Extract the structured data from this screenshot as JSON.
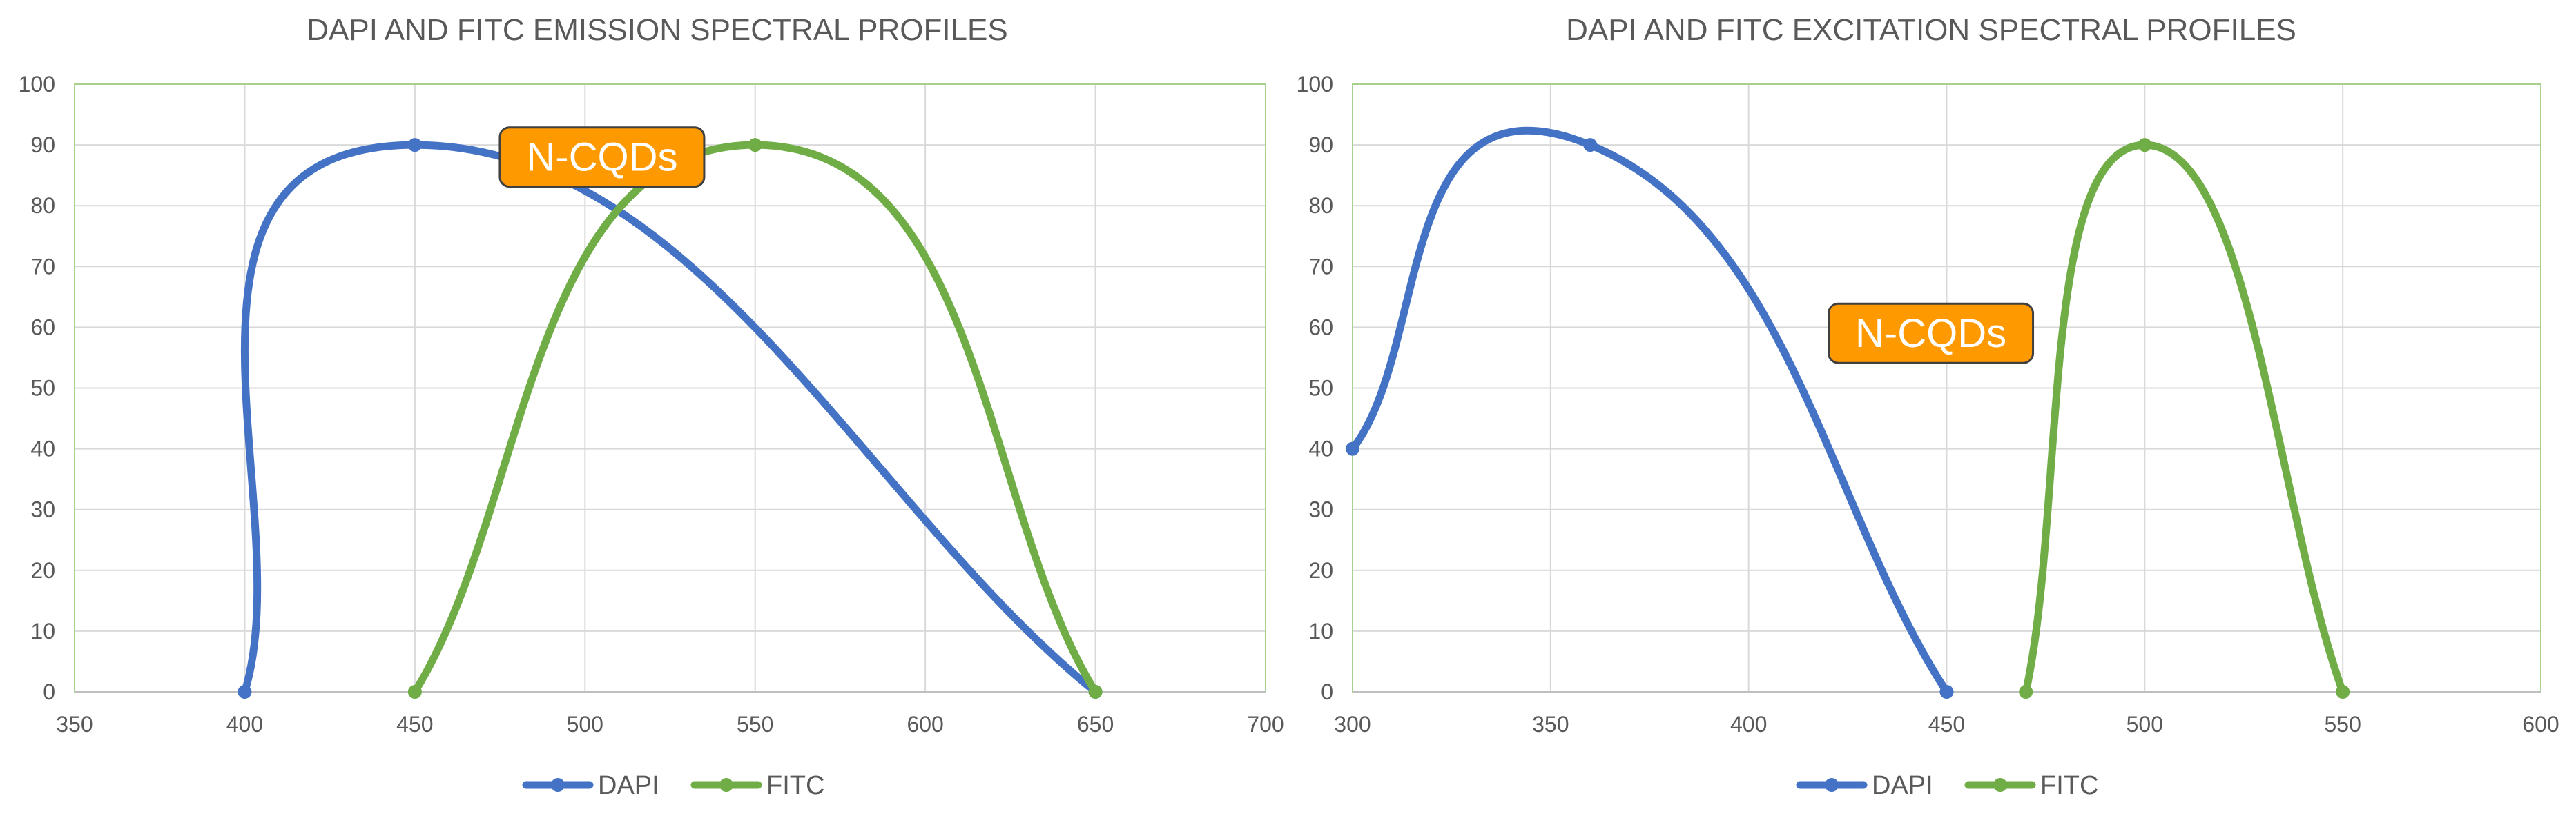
{
  "chart_data": [
    {
      "type": "scatter",
      "title": "DAPI AND FITC EMISSION SPECTRAL PROFILES",
      "xlim": [
        350,
        700
      ],
      "ylim": [
        0,
        100
      ],
      "xticks": [
        350,
        400,
        450,
        500,
        550,
        600,
        650,
        700
      ],
      "yticks": [
        0,
        10,
        20,
        30,
        40,
        50,
        60,
        70,
        80,
        90,
        100
      ],
      "grid": true,
      "smooth_lines": true,
      "legend_position": "bottom",
      "series": [
        {
          "name": "DAPI",
          "color": "#4472C4",
          "points": [
            [
              400,
              0
            ],
            [
              450,
              90
            ],
            [
              650,
              0
            ]
          ]
        },
        {
          "name": "FITC",
          "color": "#70AD47",
          "points": [
            [
              450,
              0
            ],
            [
              550,
              90
            ],
            [
              650,
              0
            ]
          ]
        }
      ],
      "annotation": {
        "text": "N-CQDs",
        "x": 505,
        "y": 88,
        "color": "#FF9900"
      }
    },
    {
      "type": "scatter",
      "title": "DAPI AND FITC EXCITATION SPECTRAL PROFILES",
      "xlim": [
        300,
        600
      ],
      "ylim": [
        0,
        100
      ],
      "xticks": [
        300,
        350,
        400,
        450,
        500,
        550,
        600
      ],
      "yticks": [
        0,
        10,
        20,
        30,
        40,
        50,
        60,
        70,
        80,
        90,
        100
      ],
      "grid": true,
      "smooth_lines": true,
      "legend_position": "bottom",
      "series": [
        {
          "name": "DAPI",
          "color": "#4472C4",
          "points": [
            [
              300,
              40
            ],
            [
              360,
              90
            ],
            [
              450,
              0
            ]
          ]
        },
        {
          "name": "FITC",
          "color": "#70AD47",
          "points": [
            [
              470,
              0
            ],
            [
              500,
              90
            ],
            [
              550,
              0
            ]
          ]
        }
      ],
      "annotation": {
        "text": "N-CQDs",
        "x": 446,
        "y": 59,
        "color": "#FF9900"
      }
    }
  ]
}
